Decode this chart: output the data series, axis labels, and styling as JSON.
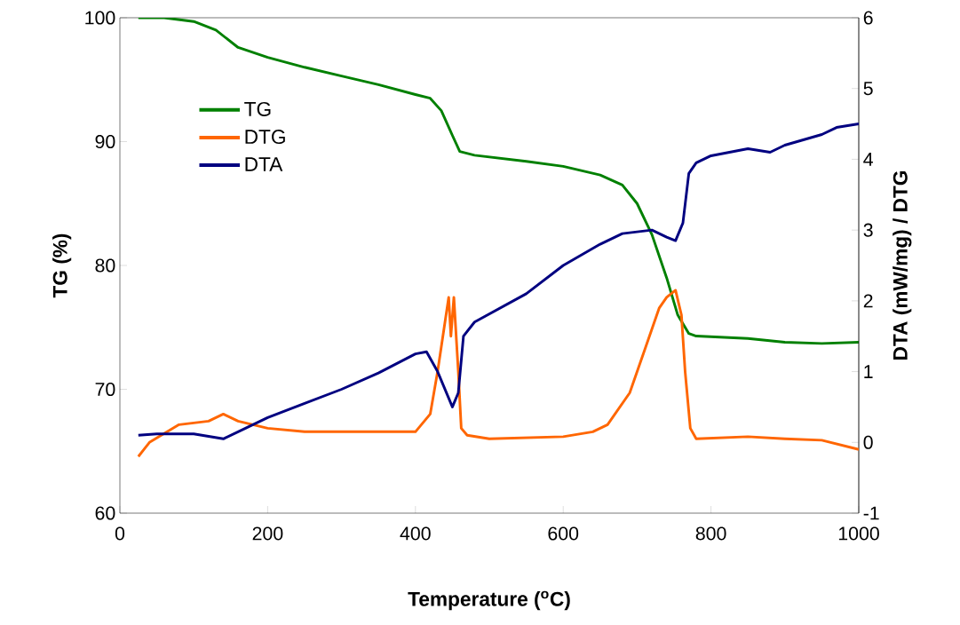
{
  "chart_data": {
    "type": "line",
    "xlabel": "Temperature ($^{o}$C)",
    "ylabel": "TG (%)",
    "y2label": "DTA (mW/mg) / DTG",
    "xlim": [
      0,
      1000
    ],
    "xticks": [
      0,
      200,
      400,
      600,
      800,
      1000
    ],
    "ylim": [
      60,
      100
    ],
    "yticks": [
      60,
      70,
      80,
      90,
      100
    ],
    "y2lim": [
      -1,
      6
    ],
    "y2ticks": [
      -1,
      0,
      1,
      2,
      3,
      4,
      5,
      6
    ],
    "legend": "top left",
    "series": [
      {
        "name": "TG",
        "color": "#008000",
        "x": [
          25,
          60,
          100,
          130,
          160,
          200,
          250,
          300,
          350,
          400,
          420,
          435,
          450,
          460,
          480,
          550,
          600,
          650,
          680,
          700,
          720,
          740,
          755,
          770,
          780,
          850,
          900,
          950,
          1000
        ],
        "values": [
          100,
          100,
          99.7,
          99,
          97.6,
          96.8,
          96,
          95.3,
          94.6,
          93.8,
          93.5,
          92.5,
          90.5,
          89.2,
          88.9,
          88.4,
          88,
          87.3,
          86.5,
          85,
          82.5,
          79,
          76,
          74.5,
          74.3,
          74.1,
          73.8,
          73.7,
          73.8
        ]
      },
      {
        "name": "DTG",
        "color": "#ff6600",
        "axis": "y2",
        "x": [
          25,
          40,
          80,
          120,
          140,
          160,
          200,
          250,
          300,
          400,
          420,
          430,
          440,
          445,
          448,
          452,
          458,
          462,
          470,
          500,
          600,
          640,
          660,
          690,
          710,
          720,
          730,
          740,
          752,
          760,
          765,
          772,
          780,
          850,
          900,
          950,
          1000
        ],
        "values": [
          -0.2,
          0,
          0.25,
          0.3,
          0.4,
          0.3,
          0.2,
          0.15,
          0.15,
          0.15,
          0.4,
          1,
          1.7,
          2.05,
          1.5,
          2.05,
          1,
          0.2,
          0.1,
          0.05,
          0.08,
          0.15,
          0.25,
          0.7,
          1.3,
          1.6,
          1.9,
          2.05,
          2.15,
          1.8,
          1,
          0.2,
          0.05,
          0.08,
          0.05,
          0.03,
          -0.1
        ]
      },
      {
        "name": "DTA",
        "color": "#000080",
        "axis": "y2",
        "x": [
          25,
          50,
          100,
          140,
          170,
          200,
          250,
          300,
          350,
          400,
          415,
          430,
          450,
          458,
          465,
          480,
          550,
          600,
          650,
          680,
          720,
          740,
          752,
          762,
          770,
          780,
          800,
          850,
          880,
          900,
          950,
          970,
          1000
        ],
        "values": [
          0.1,
          0.12,
          0.12,
          0.05,
          0.2,
          0.35,
          0.55,
          0.75,
          0.98,
          1.25,
          1.28,
          1,
          0.5,
          0.7,
          1.5,
          1.7,
          2.1,
          2.5,
          2.8,
          2.95,
          3,
          2.9,
          2.85,
          3.1,
          3.8,
          3.95,
          4.05,
          4.15,
          4.1,
          4.2,
          4.35,
          4.45,
          4.5
        ]
      }
    ]
  }
}
